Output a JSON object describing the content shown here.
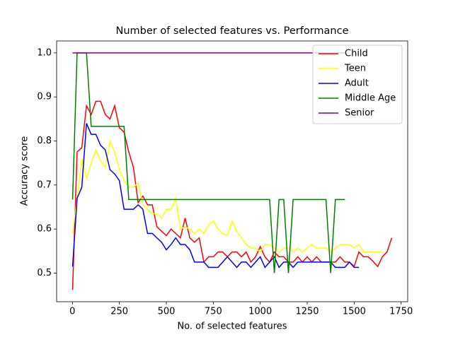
{
  "chart_data": {
    "type": "line",
    "title": "Number of selected features vs. Performance",
    "x_label": "No. of selected features",
    "y_label": "Accuracy score",
    "x": [
      1,
      25,
      50,
      75,
      100,
      125,
      150,
      175,
      200,
      225,
      250,
      275,
      300,
      325,
      350,
      375,
      400,
      425,
      450,
      475,
      500,
      525,
      550,
      575,
      600,
      625,
      650,
      675,
      700,
      725,
      750,
      775,
      800,
      825,
      850,
      875,
      900,
      925,
      950,
      975,
      1000,
      1025,
      1050,
      1075,
      1100,
      1125,
      1150,
      1175,
      1200,
      1225,
      1250,
      1275,
      1300,
      1325,
      1350,
      1375,
      1400,
      1425,
      1450,
      1475,
      1500,
      1525,
      1550,
      1575,
      1600,
      1625,
      1650,
      1675,
      1700
    ],
    "series": [
      {
        "name": "Child",
        "color": "#ff0000",
        "values": [
          0.462,
          0.775,
          0.785,
          0.88,
          0.86,
          0.89,
          0.89,
          0.86,
          0.85,
          0.88,
          0.83,
          0.82,
          0.775,
          0.74,
          0.66,
          0.675,
          0.655,
          0.655,
          0.605,
          0.595,
          0.585,
          0.6,
          0.59,
          0.58,
          0.625,
          0.58,
          0.57,
          0.58,
          0.525,
          0.537,
          0.537,
          0.548,
          0.548,
          0.537,
          0.548,
          0.548,
          0.537,
          0.548,
          0.525,
          0.537,
          0.56,
          0.537,
          0.525,
          0.548,
          0.537,
          0.537,
          0.525,
          0.525,
          0.537,
          0.525,
          0.537,
          0.525,
          0.537,
          0.525,
          0.525,
          0.525,
          0.525,
          0.537,
          0.525,
          0.525,
          0.515,
          0.548,
          0.537,
          0.537,
          0.527,
          0.515,
          0.537,
          0.548,
          0.58
        ]
      },
      {
        "name": "Teen",
        "color": "#ffff00",
        "values": [
          0.59,
          0.67,
          0.76,
          0.715,
          0.75,
          0.78,
          0.755,
          0.74,
          0.8,
          0.775,
          0.735,
          0.71,
          0.695,
          0.695,
          0.705,
          0.655,
          0.645,
          0.635,
          0.635,
          0.625,
          0.645,
          0.645,
          0.67,
          0.6,
          0.605,
          0.6,
          0.59,
          0.6,
          0.59,
          0.61,
          0.618,
          0.6,
          0.59,
          0.585,
          0.618,
          0.595,
          0.58,
          0.565,
          0.557,
          0.557,
          0.548,
          0.565,
          0.565,
          0.557,
          0.548,
          0.557,
          0.557,
          0.548,
          0.557,
          0.548,
          0.557,
          0.565,
          0.557,
          0.557,
          0.557,
          0.548,
          0.557,
          0.565,
          0.565,
          0.565,
          0.557,
          0.565,
          0.548,
          0.548,
          0.548,
          0.548,
          0.548,
          null,
          null
        ]
      },
      {
        "name": "Adult",
        "color": "#0000ff",
        "values": [
          0.515,
          0.67,
          0.695,
          0.84,
          0.815,
          0.815,
          0.79,
          0.78,
          0.735,
          0.725,
          0.71,
          0.645,
          0.645,
          0.645,
          0.655,
          0.645,
          0.59,
          0.59,
          0.58,
          0.57,
          0.553,
          0.565,
          0.58,
          0.565,
          0.565,
          0.553,
          0.525,
          0.525,
          0.525,
          0.513,
          0.513,
          0.513,
          0.525,
          0.537,
          0.525,
          0.513,
          0.525,
          0.525,
          0.513,
          0.525,
          0.537,
          0.513,
          0.525,
          0.537,
          0.513,
          0.525,
          0.525,
          0.513,
          0.525,
          0.525,
          0.525,
          0.525,
          0.525,
          0.525,
          0.525,
          0.525,
          0.513,
          0.513,
          0.513,
          0.525,
          0.513,
          0.513,
          null,
          null,
          null,
          null,
          null,
          null,
          null
        ]
      },
      {
        "name": "Middle Age",
        "color": "#008000",
        "values": [
          0.667,
          1,
          1,
          1,
          0.833,
          0.833,
          0.833,
          0.833,
          0.833,
          0.833,
          0.833,
          0.833,
          0.667,
          0.667,
          0.667,
          0.667,
          0.667,
          0.667,
          0.667,
          0.667,
          0.667,
          0.667,
          0.667,
          0.667,
          0.667,
          0.667,
          0.667,
          0.667,
          0.667,
          0.667,
          0.667,
          0.667,
          0.667,
          0.667,
          0.667,
          0.667,
          0.667,
          0.667,
          0.667,
          0.667,
          0.667,
          0.667,
          0.667,
          0.5,
          0.667,
          0.667,
          0.5,
          0.667,
          0.667,
          0.667,
          0.667,
          0.667,
          0.667,
          0.667,
          0.667,
          0.5,
          0.667,
          0.667,
          0.667,
          null,
          null,
          null,
          null,
          null,
          null,
          null,
          null,
          null,
          null
        ]
      },
      {
        "name": "Senior",
        "color": "#800080",
        "values": [
          1,
          1,
          1,
          1,
          1,
          1,
          1,
          1,
          1,
          1,
          1,
          1,
          1,
          1,
          1,
          1,
          1,
          1,
          1,
          1,
          1,
          1,
          1,
          1,
          1,
          1,
          1,
          1,
          1,
          1,
          1,
          1,
          1,
          1,
          1,
          1,
          1,
          1,
          1,
          1,
          1,
          1,
          1,
          1,
          1,
          1,
          1,
          1,
          1,
          1,
          1,
          1,
          1,
          1,
          1,
          1,
          1,
          1,
          1,
          null,
          null,
          null,
          null,
          null,
          null,
          null,
          null,
          null,
          null
        ]
      }
    ],
    "xlim": [
      -84,
      1785
    ],
    "ylim": [
      0.435,
      1.027
    ],
    "xticks": [
      0,
      250,
      500,
      750,
      1000,
      1250,
      1500,
      1750
    ],
    "yticks": [
      0.5,
      0.6,
      0.7,
      0.8,
      0.9,
      {
        "value": 1,
        "label": "1.0"
      }
    ],
    "legend": "upper right"
  }
}
